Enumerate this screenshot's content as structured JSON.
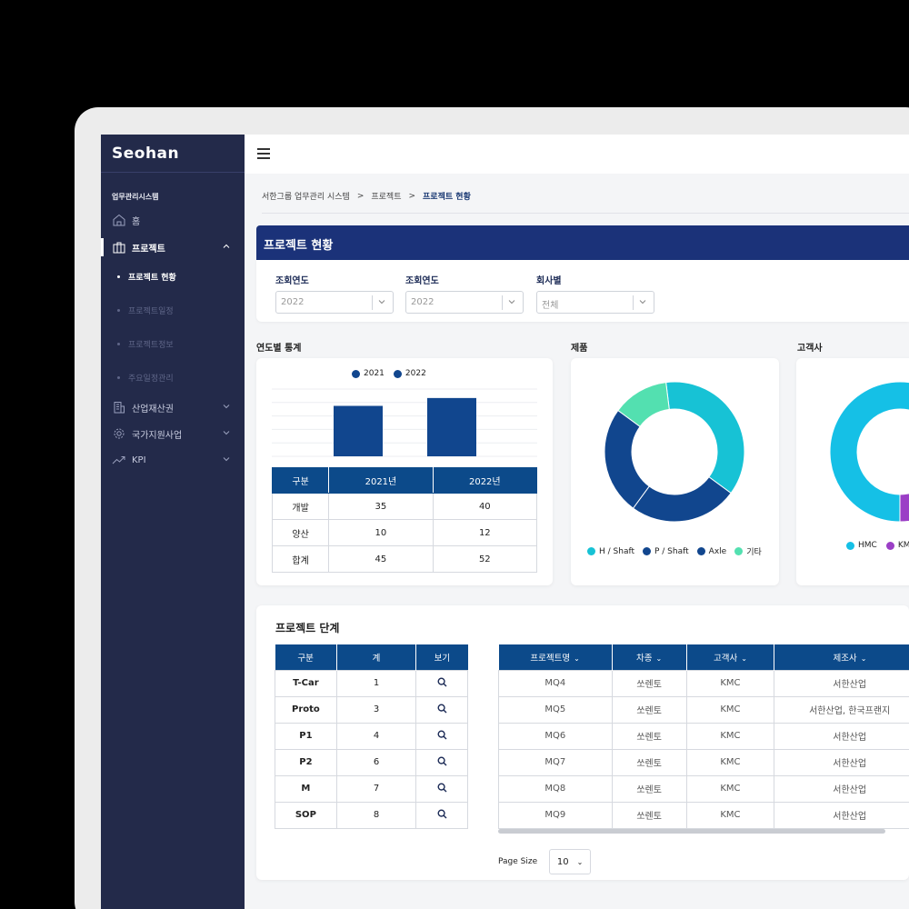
{
  "sidebar": {
    "logo": "Seohan",
    "system_title": "업무관리시스템",
    "items": [
      {
        "label": "홈"
      },
      {
        "label": "프로젝트"
      },
      {
        "label": "산업재산권"
      },
      {
        "label": "국가지원사업"
      },
      {
        "label": "KPI"
      }
    ],
    "sub_items": [
      {
        "label": "프로젝트 현황"
      },
      {
        "label": "프로젝트일정"
      },
      {
        "label": "프로젝트정보"
      },
      {
        "label": "주요일정관리"
      }
    ]
  },
  "breadcrumb": {
    "items": [
      "서한그룹 업무관리 시스템",
      "프로젝트",
      "프로젝트 현황"
    ],
    "separator": ">"
  },
  "page": {
    "title": "프로젝트 현황"
  },
  "filters": [
    {
      "label": "조회연도",
      "value": "2022"
    },
    {
      "label": "조회연도",
      "value": "2022"
    },
    {
      "label": "회사별",
      "value": "전체"
    }
  ],
  "yearly_stats": {
    "title": "연도별 통계",
    "legend": [
      "2021",
      "2022"
    ],
    "table": {
      "headers": [
        "구분",
        "2021년",
        "2022년"
      ],
      "rows": [
        [
          "개발",
          "35",
          "40"
        ],
        [
          "양산",
          "10",
          "12"
        ],
        [
          "합계",
          "45",
          "52"
        ]
      ]
    }
  },
  "product": {
    "title": "제품",
    "legend": [
      "H / Shaft",
      "P / Shaft",
      "Axle",
      "기타"
    ]
  },
  "customer": {
    "title": "고객사",
    "legend": [
      "HMC",
      "KM"
    ]
  },
  "chart_data": [
    {
      "type": "bar",
      "categories": [
        "합계"
      ],
      "series": [
        {
          "name": "2021",
          "values": [
            45
          ]
        },
        {
          "name": "2022",
          "values": [
            52
          ]
        }
      ],
      "ylim": [
        0,
        60
      ],
      "grid": true,
      "legend": "top"
    },
    {
      "type": "pie",
      "labels": [
        "H / Shaft",
        "P / Shaft",
        "Axle",
        "기타"
      ],
      "values": [
        37,
        25,
        25,
        13
      ],
      "colors": [
        "#17c2d5",
        "#11468e",
        "#11468e",
        "#53e0b0"
      ],
      "legend": "bottom"
    },
    {
      "type": "pie",
      "labels": [
        "HMC",
        "KM"
      ],
      "values": [
        96,
        4
      ],
      "colors": [
        "#15c0e6",
        "#9b3fc6"
      ],
      "legend": "bottom"
    }
  ],
  "stages": {
    "title": "프로젝트 단계",
    "headers": [
      "구분",
      "계",
      "보기"
    ],
    "rows": [
      [
        "T-Car",
        "1"
      ],
      [
        "Proto",
        "3"
      ],
      [
        "P1",
        "4"
      ],
      [
        "P2",
        "6"
      ],
      [
        "M",
        "7"
      ],
      [
        "SOP",
        "8"
      ]
    ]
  },
  "projects": {
    "headers": [
      "프로젝트명",
      "차종",
      "고객사",
      "제조사"
    ],
    "rows": [
      [
        "MQ4",
        "쏘렌토",
        "KMC",
        "서한산업"
      ],
      [
        "MQ5",
        "쏘렌토",
        "KMC",
        "서한산업, 한국프랜지"
      ],
      [
        "MQ6",
        "쏘렌토",
        "KMC",
        "서한산업"
      ],
      [
        "MQ7",
        "쏘렌토",
        "KMC",
        "서한산업"
      ],
      [
        "MQ8",
        "쏘렌토",
        "KMC",
        "서한산업"
      ],
      [
        "MQ9",
        "쏘렌토",
        "KMC",
        "서한산업"
      ]
    ]
  },
  "pagination": {
    "label": "Page Size",
    "value": "10"
  },
  "colors": {
    "sidebar_bg": "#232a4a",
    "header_bg": "#1b3279",
    "table_header": "#0c4a8a",
    "bar": "#11468e"
  }
}
